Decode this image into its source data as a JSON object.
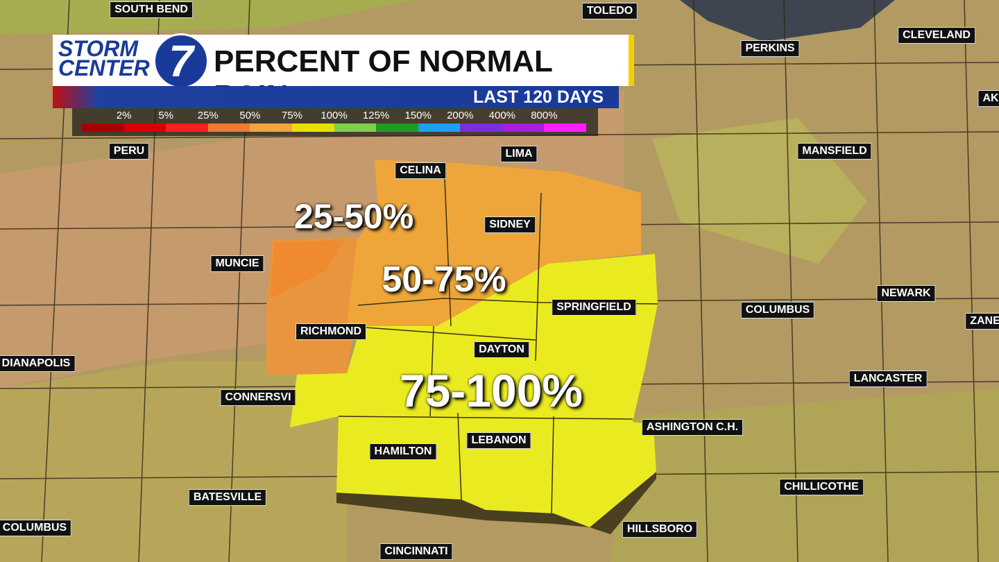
{
  "header": {
    "logo_top": "STORM",
    "logo_bottom": "CENTER",
    "logo_number": "7",
    "title": "PERCENT OF NORMAL RAIN",
    "subtitle": "LAST 120 DAYS"
  },
  "legend": {
    "labels": [
      "2%",
      "5%",
      "25%",
      "50%",
      "75%",
      "100%",
      "125%",
      "150%",
      "200%",
      "400%",
      "800%"
    ],
    "colors": [
      "#a80000",
      "#d80000",
      "#ff1e1e",
      "#f07a30",
      "#f0a63c",
      "#e8e000",
      "#7cd04c",
      "#1e9e1e",
      "#1ea0f0",
      "#7a2ee0",
      "#a81ee0",
      "#ff1eff"
    ]
  },
  "cities": [
    "SOUTH BEND",
    "TOLEDO",
    "CLEVELAND",
    "PERKINS",
    "AK",
    "PERU",
    "LIMA",
    "CELINA",
    "MANSFIELD",
    "SIDNEY",
    "MUNCIE",
    "NEWARK",
    "SPRINGFIELD",
    "COLUMBUS",
    "ZANE",
    "RICHMOND",
    "DAYTON",
    "DIANAPOLIS",
    "LANCASTER",
    "CONNERSVI",
    "ASHINGTON C.H.",
    "HAMILTON",
    "LEBANON",
    "CHILLICOTHE",
    "BATESVILLE",
    "COLUMBUS",
    "HILLSBORO",
    "CINCINNATI"
  ],
  "regions": [
    "25-50%",
    "50-75%",
    "75-100%"
  ]
}
